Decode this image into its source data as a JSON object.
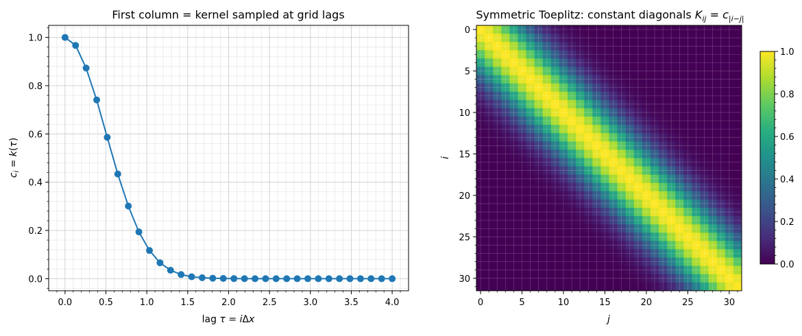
{
  "chart_data": [
    {
      "type": "line",
      "title": "First column = kernel sampled at grid lags",
      "xlabel": "lag τ = iΔx",
      "ylabel": "c_i = k(τ)",
      "xlim": [
        -0.2,
        4.2
      ],
      "ylim": [
        -0.05,
        1.05
      ],
      "xticks": [
        "0.0",
        "0.5",
        "1.0",
        "1.5",
        "2.0",
        "2.5",
        "3.0",
        "3.5",
        "4.0"
      ],
      "yticks": [
        "0.0",
        "0.2",
        "0.4",
        "0.6",
        "0.8",
        "1.0"
      ],
      "grid": true,
      "color": "#1f77b4",
      "x": [
        0,
        0.129,
        0.258,
        0.387,
        0.516,
        0.645,
        0.774,
        0.903,
        1.032,
        1.161,
        1.29,
        1.419,
        1.548,
        1.677,
        1.806,
        1.935,
        2.065,
        2.194,
        2.323,
        2.452,
        2.581,
        2.71,
        2.839,
        2.968,
        3.097,
        3.226,
        3.355,
        3.484,
        3.613,
        3.742,
        3.871,
        4.0
      ],
      "y": [
        1.0,
        0.967,
        0.873,
        0.741,
        0.586,
        0.434,
        0.301,
        0.194,
        0.117,
        0.066,
        0.035,
        0.017,
        0.008,
        0.004,
        0.002,
        0.001,
        0.0003,
        0.0001,
        0.0,
        0.0,
        0.0,
        0.0,
        0.0,
        0.0,
        0.0,
        0.0,
        0.0,
        0.0,
        0.0,
        0.0,
        0.0,
        0.0
      ]
    },
    {
      "type": "heatmap",
      "title": "Symmetric Toeplitz: constant diagonals K_ij = c_|i−j|",
      "xlabel": "j",
      "ylabel": "i",
      "size": 32,
      "xticks": [
        "0",
        "5",
        "10",
        "15",
        "20",
        "25",
        "30"
      ],
      "yticks": [
        "0",
        "5",
        "10",
        "15",
        "20",
        "25",
        "30"
      ],
      "colormap": "viridis",
      "colorbar": {
        "range": [
          0.0,
          1.0
        ],
        "ticks": [
          "0.0",
          "0.2",
          "0.4",
          "0.6",
          "0.8",
          "1.0"
        ]
      },
      "grid": true,
      "values_rule": "K[i][j] = c[|i-j|] using first-chart y values"
    }
  ]
}
